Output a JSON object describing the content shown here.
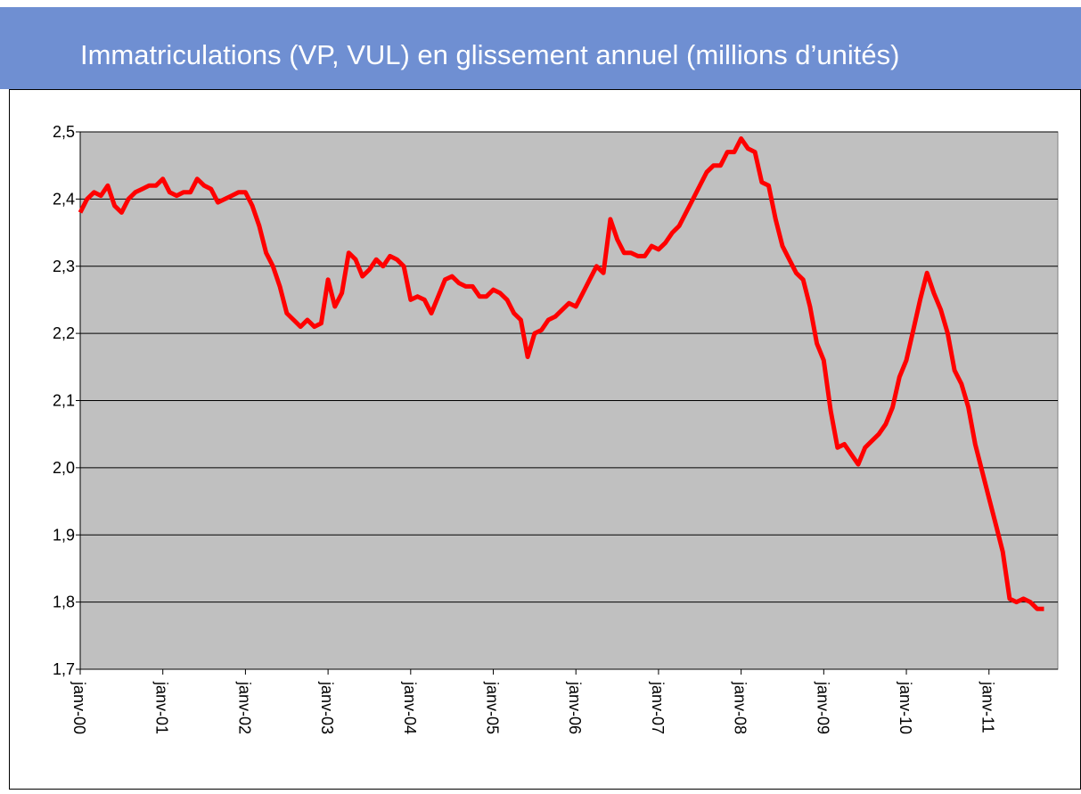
{
  "chart_data": {
    "type": "line",
    "title": "Immatriculations (VP,  VUL) en glissement annuel (millions d’unités)",
    "categories": [
      "janv-00",
      null,
      null,
      null,
      null,
      null,
      null,
      null,
      null,
      null,
      null,
      null,
      "janv-01",
      null,
      null,
      null,
      null,
      null,
      null,
      null,
      null,
      null,
      null,
      null,
      "janv-02",
      null,
      null,
      null,
      null,
      null,
      null,
      null,
      null,
      null,
      null,
      null,
      "janv-03",
      null,
      null,
      null,
      null,
      null,
      null,
      null,
      null,
      null,
      null,
      null,
      "janv-04",
      null,
      null,
      null,
      null,
      null,
      null,
      null,
      null,
      null,
      null,
      null,
      "janv-05",
      null,
      null,
      null,
      null,
      null,
      null,
      null,
      null,
      null,
      null,
      null,
      "janv-06",
      null,
      null,
      null,
      null,
      null,
      null,
      null,
      null,
      null,
      null,
      null,
      "janv-07",
      null,
      null,
      null,
      null,
      null,
      null,
      null,
      null,
      null,
      null,
      null,
      "janv-08",
      null,
      null,
      null,
      null,
      null,
      null,
      null,
      null,
      null,
      null,
      null,
      "janv-09",
      null,
      null,
      null,
      null,
      null,
      null,
      null,
      null,
      null,
      null,
      null,
      "janv-10",
      null,
      null,
      null,
      null,
      null,
      null,
      null,
      null,
      null,
      null,
      null,
      "janv-11",
      null,
      null,
      null,
      null,
      null,
      null,
      null,
      null
    ],
    "values": [
      2.38,
      2.4,
      2.41,
      2.405,
      2.42,
      2.39,
      2.38,
      2.4,
      2.41,
      2.415,
      2.42,
      2.42,
      2.43,
      2.41,
      2.405,
      2.41,
      2.41,
      2.43,
      2.42,
      2.415,
      2.395,
      2.4,
      2.405,
      2.41,
      2.41,
      2.39,
      2.36,
      2.32,
      2.3,
      2.27,
      2.23,
      2.22,
      2.21,
      2.22,
      2.21,
      2.215,
      2.28,
      2.24,
      2.26,
      2.32,
      2.31,
      2.285,
      2.295,
      2.31,
      2.3,
      2.315,
      2.31,
      2.3,
      2.25,
      2.255,
      2.25,
      2.23,
      2.255,
      2.28,
      2.285,
      2.275,
      2.27,
      2.27,
      2.255,
      2.255,
      2.265,
      2.26,
      2.25,
      2.23,
      2.22,
      2.165,
      2.2,
      2.205,
      2.22,
      2.225,
      2.235,
      2.245,
      2.24,
      2.26,
      2.28,
      2.3,
      2.29,
      2.37,
      2.34,
      2.32,
      2.32,
      2.315,
      2.315,
      2.33,
      2.325,
      2.335,
      2.35,
      2.36,
      2.38,
      2.4,
      2.42,
      2.44,
      2.45,
      2.45,
      2.47,
      2.47,
      2.49,
      2.475,
      2.47,
      2.425,
      2.42,
      2.37,
      2.33,
      2.31,
      2.29,
      2.28,
      2.24,
      2.185,
      2.16,
      2.085,
      2.03,
      2.035,
      2.02,
      2.005,
      2.03,
      2.04,
      2.05,
      2.065,
      2.09,
      2.135,
      2.16,
      2.205,
      2.25,
      2.29,
      2.26,
      2.235,
      2.2,
      2.145,
      2.125,
      2.09,
      2.035,
      1.995,
      1.955,
      1.915,
      1.875,
      1.805,
      1.8,
      1.805,
      1.8,
      1.79,
      1.79
    ],
    "color": "#ff0000",
    "ylim": [
      1.7,
      2.5
    ],
    "yticks": [
      {
        "value": 1.7,
        "label": "1,7"
      },
      {
        "value": 1.8,
        "label": "1,8"
      },
      {
        "value": 1.9,
        "label": "1,9"
      },
      {
        "value": 2.0,
        "label": "2,0"
      },
      {
        "value": 2.1,
        "label": "2,1"
      },
      {
        "value": 2.2,
        "label": "2,2"
      },
      {
        "value": 2.3,
        "label": "2,3"
      },
      {
        "value": 2.4,
        "label": "2,4"
      },
      {
        "value": 2.5,
        "label": "2,5"
      }
    ],
    "grid": true
  }
}
